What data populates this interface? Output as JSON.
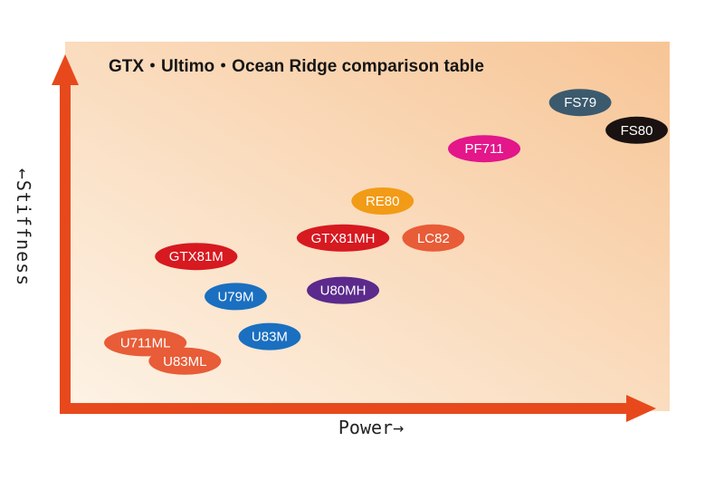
{
  "chart_data": {
    "type": "scatter",
    "title": "GTX・Ultimo・Ocean Ridge comparison table",
    "xlabel": "Power→",
    "ylabel": "←Stiffness",
    "xlim": [
      0,
      10
    ],
    "ylim": [
      0,
      10
    ],
    "grid": false,
    "legend": "none",
    "points": [
      {
        "label": "FS79",
        "x": 8.8,
        "y": 9.2,
        "color": "#3c5a6e",
        "text_color": "#ffffff"
      },
      {
        "label": "FS80",
        "x": 9.8,
        "y": 8.3,
        "color": "#1a1210",
        "text_color": "#ffffff"
      },
      {
        "label": "PF711",
        "x": 7.1,
        "y": 7.7,
        "color": "#e3168a",
        "text_color": "#ffffff"
      },
      {
        "label": "RE80",
        "x": 5.3,
        "y": 6.0,
        "color": "#f29b16",
        "text_color": "#ffffff"
      },
      {
        "label": "GTX81MH",
        "x": 4.6,
        "y": 4.8,
        "color": "#d71920",
        "text_color": "#ffffff"
      },
      {
        "label": "LC82",
        "x": 6.2,
        "y": 4.8,
        "color": "#e85c37",
        "text_color": "#ffffff"
      },
      {
        "label": "GTX81M",
        "x": 2.0,
        "y": 4.2,
        "color": "#d71920",
        "text_color": "#ffffff"
      },
      {
        "label": "U79M",
        "x": 2.7,
        "y": 2.9,
        "color": "#1a6fc0",
        "text_color": "#ffffff"
      },
      {
        "label": "U80MH",
        "x": 4.6,
        "y": 3.1,
        "color": "#5b2a8c",
        "text_color": "#ffffff"
      },
      {
        "label": "U83M",
        "x": 3.3,
        "y": 1.6,
        "color": "#1a6fc0",
        "text_color": "#ffffff"
      },
      {
        "label": "U711ML",
        "x": 1.1,
        "y": 1.4,
        "color": "#e85c37",
        "text_color": "#ffffff"
      },
      {
        "label": "U83ML",
        "x": 1.8,
        "y": 0.8,
        "color": "#e85c37",
        "text_color": "#ffffff"
      }
    ]
  },
  "colors": {
    "axis": "#e8491c",
    "background_start": "#fdf3e6",
    "background_end": "#f7c596"
  }
}
